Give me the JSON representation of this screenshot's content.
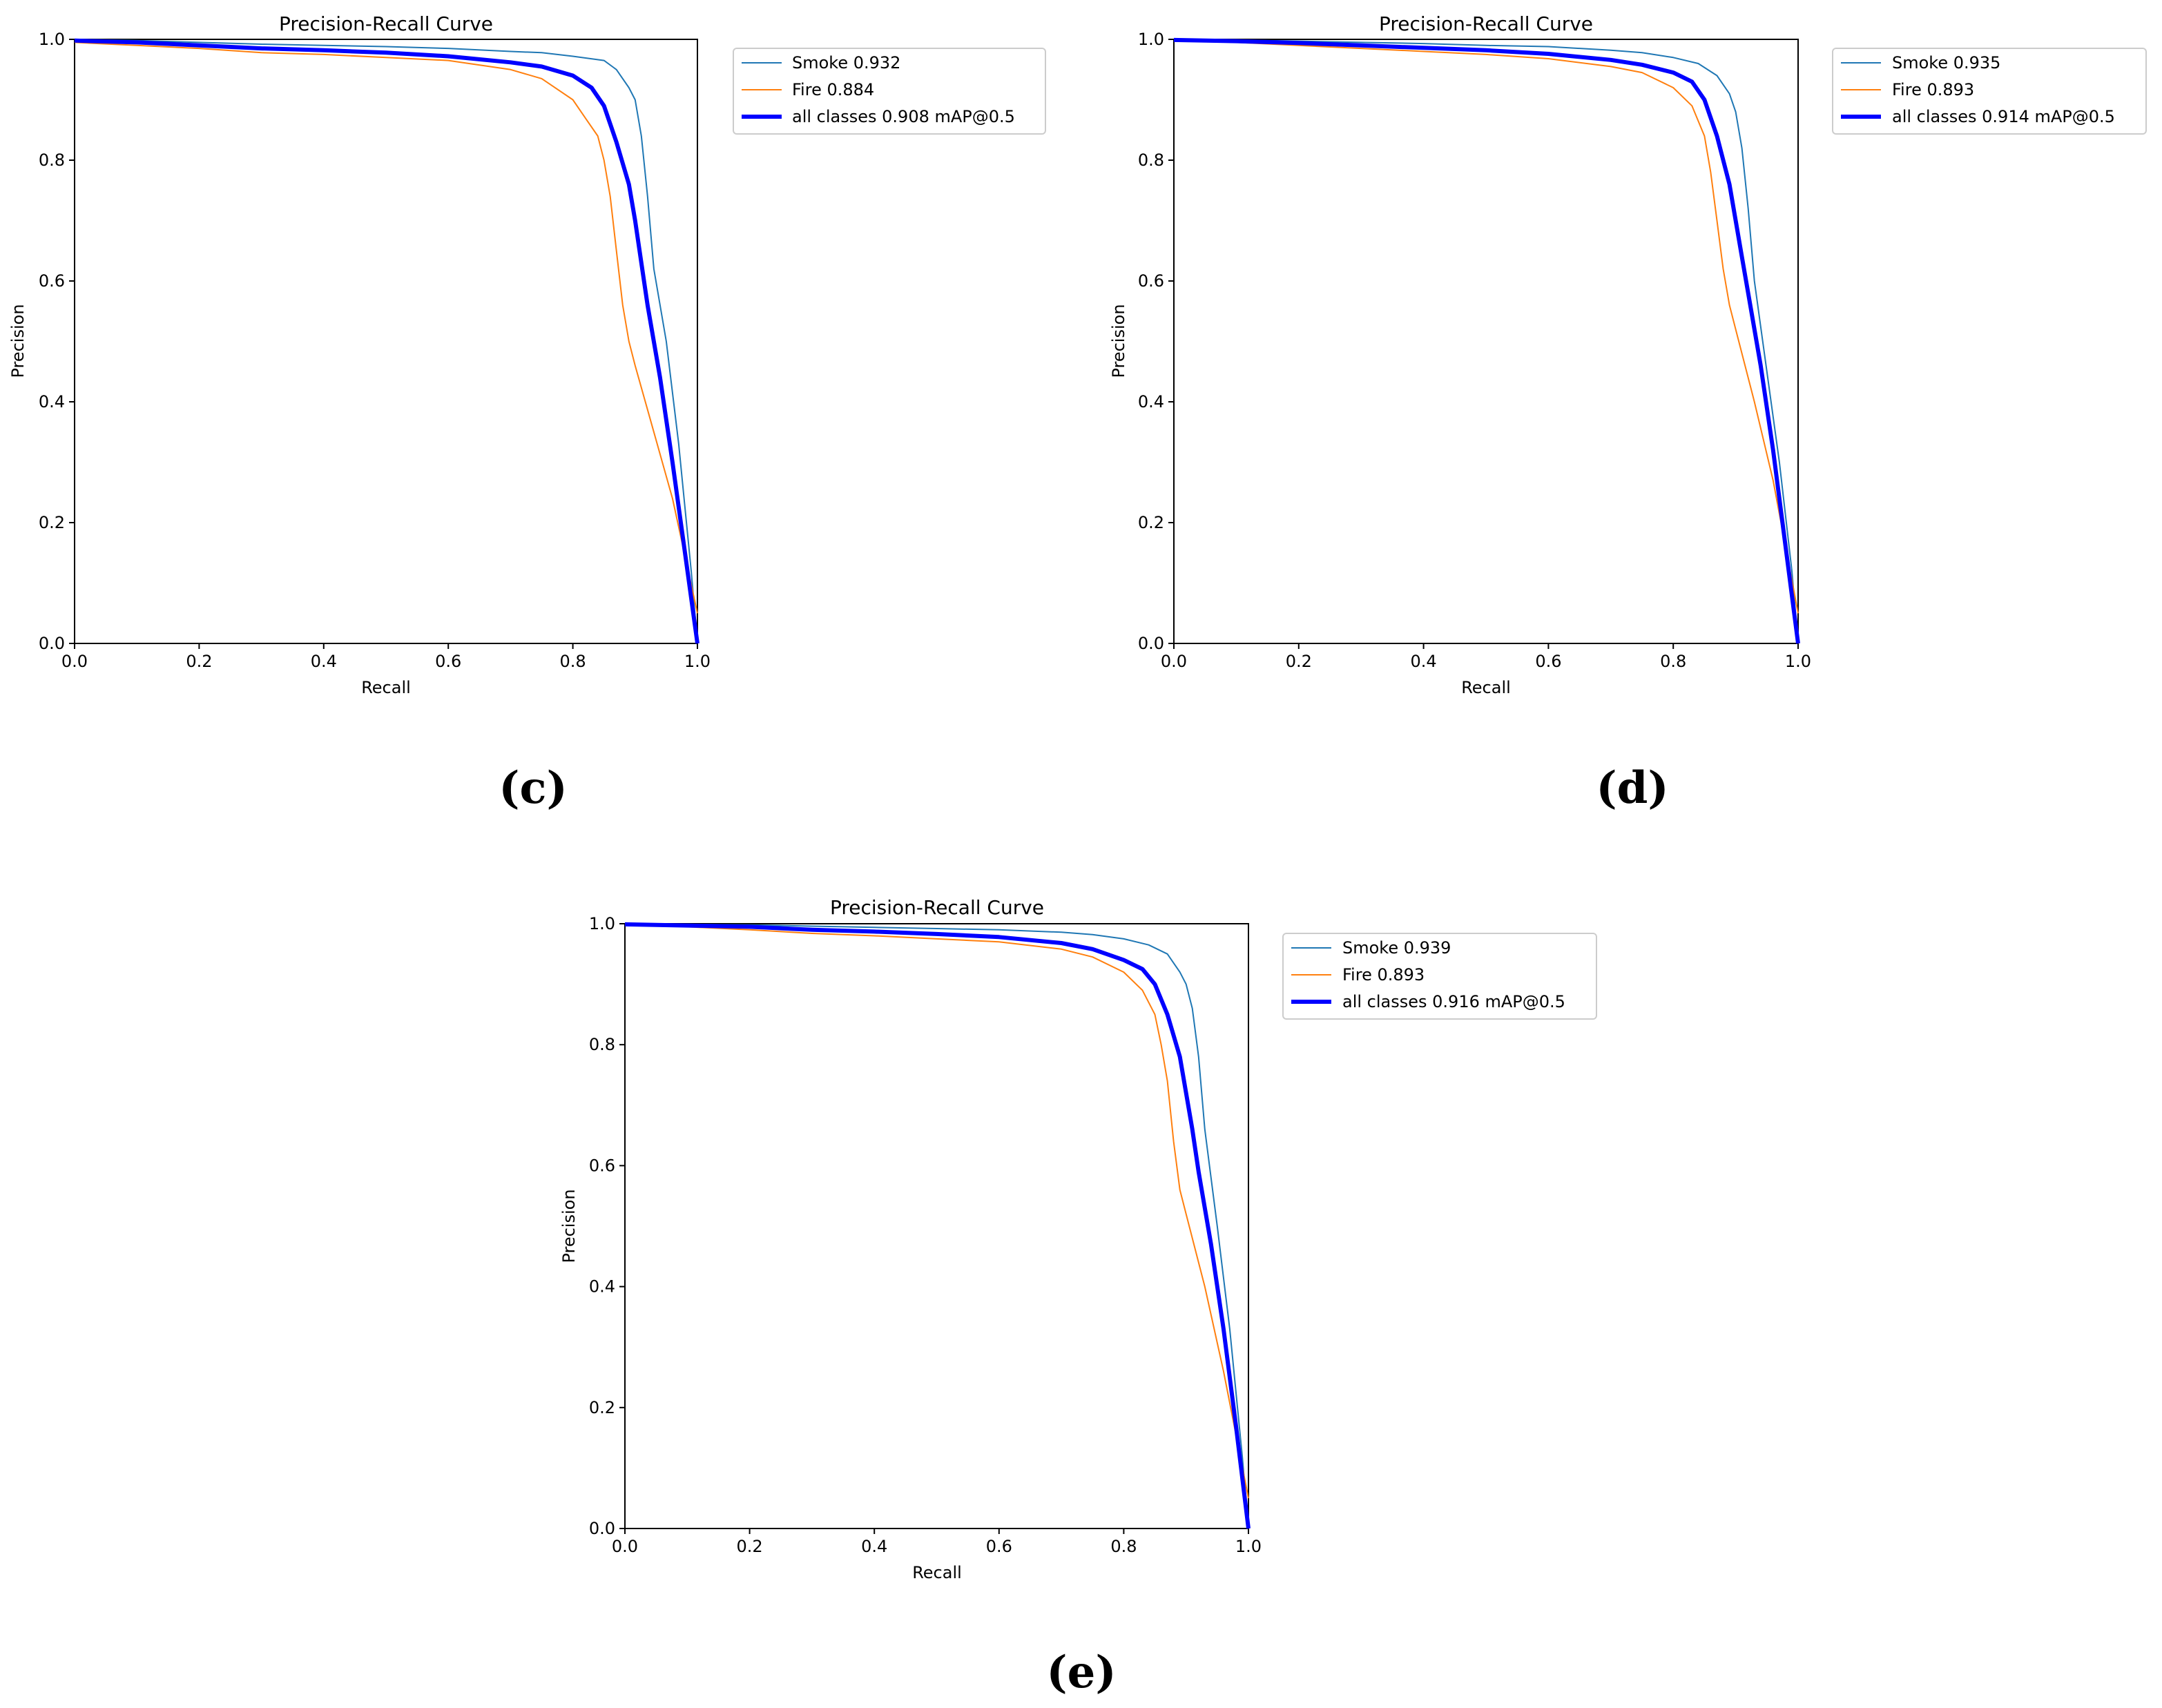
{
  "colors": {
    "smoke": "#1f77b4",
    "fire": "#ff7f0e",
    "all": "#0000ff"
  },
  "chart_data": [
    {
      "panel_label": "(c)",
      "type": "line",
      "title": "Precision-Recall Curve",
      "xlabel": "Recall",
      "ylabel": "Precision",
      "xlim": [
        0,
        1
      ],
      "ylim": [
        0,
        1
      ],
      "xticks": [
        "0.0",
        "0.2",
        "0.4",
        "0.6",
        "0.8",
        "1.0"
      ],
      "yticks": [
        "0.0",
        "0.2",
        "0.4",
        "0.6",
        "0.8",
        "1.0"
      ],
      "grid": false,
      "legend_position": "outside-right",
      "series": [
        {
          "name": "Smoke 0.932",
          "color": "#1f77b4",
          "points": [
            [
              0,
              1.0
            ],
            [
              0.1,
              0.998
            ],
            [
              0.2,
              0.995
            ],
            [
              0.3,
              0.992
            ],
            [
              0.4,
              0.99
            ],
            [
              0.5,
              0.988
            ],
            [
              0.6,
              0.985
            ],
            [
              0.7,
              0.98
            ],
            [
              0.75,
              0.978
            ],
            [
              0.8,
              0.972
            ],
            [
              0.85,
              0.965
            ],
            [
              0.87,
              0.95
            ],
            [
              0.89,
              0.92
            ],
            [
              0.9,
              0.9
            ],
            [
              0.91,
              0.84
            ],
            [
              0.92,
              0.74
            ],
            [
              0.93,
              0.62
            ],
            [
              0.95,
              0.5
            ],
            [
              0.97,
              0.33
            ],
            [
              0.99,
              0.12
            ],
            [
              1.0,
              0.0
            ]
          ]
        },
        {
          "name": "Fire 0.884",
          "color": "#ff7f0e",
          "points": [
            [
              0,
              0.995
            ],
            [
              0.1,
              0.99
            ],
            [
              0.2,
              0.985
            ],
            [
              0.3,
              0.978
            ],
            [
              0.4,
              0.975
            ],
            [
              0.5,
              0.97
            ],
            [
              0.6,
              0.965
            ],
            [
              0.7,
              0.95
            ],
            [
              0.75,
              0.935
            ],
            [
              0.8,
              0.9
            ],
            [
              0.82,
              0.87
            ],
            [
              0.84,
              0.84
            ],
            [
              0.85,
              0.8
            ],
            [
              0.86,
              0.74
            ],
            [
              0.87,
              0.65
            ],
            [
              0.88,
              0.56
            ],
            [
              0.89,
              0.5
            ],
            [
              0.9,
              0.46
            ],
            [
              0.93,
              0.35
            ],
            [
              0.96,
              0.24
            ],
            [
              1.0,
              0.05
            ]
          ]
        },
        {
          "name": "all classes 0.908 mAP@0.5",
          "color": "#0000ff",
          "points": [
            [
              0,
              0.998
            ],
            [
              0.1,
              0.995
            ],
            [
              0.2,
              0.99
            ],
            [
              0.3,
              0.985
            ],
            [
              0.4,
              0.982
            ],
            [
              0.5,
              0.978
            ],
            [
              0.6,
              0.972
            ],
            [
              0.7,
              0.962
            ],
            [
              0.75,
              0.955
            ],
            [
              0.8,
              0.94
            ],
            [
              0.83,
              0.92
            ],
            [
              0.85,
              0.89
            ],
            [
              0.87,
              0.83
            ],
            [
              0.89,
              0.76
            ],
            [
              0.9,
              0.7
            ],
            [
              0.91,
              0.63
            ],
            [
              0.92,
              0.56
            ],
            [
              0.94,
              0.44
            ],
            [
              0.96,
              0.3
            ],
            [
              0.98,
              0.15
            ],
            [
              1.0,
              0.0
            ]
          ]
        }
      ]
    },
    {
      "panel_label": "(d)",
      "type": "line",
      "title": "Precision-Recall Curve",
      "xlabel": "Recall",
      "ylabel": "Precision",
      "xlim": [
        0,
        1
      ],
      "ylim": [
        0,
        1
      ],
      "xticks": [
        "0.0",
        "0.2",
        "0.4",
        "0.6",
        "0.8",
        "1.0"
      ],
      "yticks": [
        "0.0",
        "0.2",
        "0.4",
        "0.6",
        "0.8",
        "1.0"
      ],
      "grid": false,
      "legend_position": "outside-right",
      "series": [
        {
          "name": "Smoke 0.935",
          "color": "#1f77b4",
          "points": [
            [
              0,
              1.0
            ],
            [
              0.1,
              0.999
            ],
            [
              0.2,
              0.997
            ],
            [
              0.3,
              0.995
            ],
            [
              0.4,
              0.993
            ],
            [
              0.5,
              0.99
            ],
            [
              0.6,
              0.988
            ],
            [
              0.7,
              0.982
            ],
            [
              0.75,
              0.978
            ],
            [
              0.8,
              0.97
            ],
            [
              0.84,
              0.96
            ],
            [
              0.87,
              0.94
            ],
            [
              0.89,
              0.91
            ],
            [
              0.9,
              0.88
            ],
            [
              0.91,
              0.82
            ],
            [
              0.92,
              0.72
            ],
            [
              0.93,
              0.6
            ],
            [
              0.95,
              0.45
            ],
            [
              0.97,
              0.3
            ],
            [
              0.99,
              0.12
            ],
            [
              1.0,
              0.0
            ]
          ]
        },
        {
          "name": "Fire 0.893",
          "color": "#ff7f0e",
          "points": [
            [
              0,
              0.998
            ],
            [
              0.1,
              0.995
            ],
            [
              0.2,
              0.99
            ],
            [
              0.3,
              0.985
            ],
            [
              0.4,
              0.98
            ],
            [
              0.5,
              0.975
            ],
            [
              0.6,
              0.968
            ],
            [
              0.7,
              0.955
            ],
            [
              0.75,
              0.945
            ],
            [
              0.8,
              0.92
            ],
            [
              0.83,
              0.89
            ],
            [
              0.85,
              0.84
            ],
            [
              0.86,
              0.78
            ],
            [
              0.87,
              0.7
            ],
            [
              0.88,
              0.62
            ],
            [
              0.89,
              0.56
            ],
            [
              0.9,
              0.52
            ],
            [
              0.93,
              0.4
            ],
            [
              0.96,
              0.27
            ],
            [
              1.0,
              0.05
            ]
          ]
        },
        {
          "name": "all classes 0.914 mAP@0.5",
          "color": "#0000ff",
          "points": [
            [
              0,
              0.999
            ],
            [
              0.1,
              0.997
            ],
            [
              0.2,
              0.994
            ],
            [
              0.3,
              0.99
            ],
            [
              0.4,
              0.986
            ],
            [
              0.5,
              0.982
            ],
            [
              0.6,
              0.976
            ],
            [
              0.7,
              0.966
            ],
            [
              0.75,
              0.958
            ],
            [
              0.8,
              0.945
            ],
            [
              0.83,
              0.93
            ],
            [
              0.85,
              0.9
            ],
            [
              0.87,
              0.84
            ],
            [
              0.89,
              0.76
            ],
            [
              0.9,
              0.7
            ],
            [
              0.91,
              0.64
            ],
            [
              0.92,
              0.58
            ],
            [
              0.94,
              0.46
            ],
            [
              0.96,
              0.32
            ],
            [
              0.98,
              0.16
            ],
            [
              1.0,
              0.0
            ]
          ]
        }
      ]
    },
    {
      "panel_label": "(e)",
      "type": "line",
      "title": "Precision-Recall Curve",
      "xlabel": "Recall",
      "ylabel": "Precision",
      "xlim": [
        0,
        1
      ],
      "ylim": [
        0,
        1
      ],
      "xticks": [
        "0.0",
        "0.2",
        "0.4",
        "0.6",
        "0.8",
        "1.0"
      ],
      "yticks": [
        "0.0",
        "0.2",
        "0.4",
        "0.6",
        "0.8",
        "1.0"
      ],
      "grid": false,
      "legend_position": "outside-right",
      "series": [
        {
          "name": "Smoke 0.939",
          "color": "#1f77b4",
          "points": [
            [
              0,
              1.0
            ],
            [
              0.1,
              0.999
            ],
            [
              0.2,
              0.998
            ],
            [
              0.3,
              0.996
            ],
            [
              0.4,
              0.994
            ],
            [
              0.5,
              0.992
            ],
            [
              0.6,
              0.99
            ],
            [
              0.7,
              0.986
            ],
            [
              0.75,
              0.982
            ],
            [
              0.8,
              0.975
            ],
            [
              0.84,
              0.965
            ],
            [
              0.87,
              0.95
            ],
            [
              0.89,
              0.92
            ],
            [
              0.9,
              0.9
            ],
            [
              0.91,
              0.86
            ],
            [
              0.92,
              0.78
            ],
            [
              0.93,
              0.66
            ],
            [
              0.95,
              0.5
            ],
            [
              0.97,
              0.33
            ],
            [
              0.99,
              0.12
            ],
            [
              1.0,
              0.0
            ]
          ]
        },
        {
          "name": "Fire 0.893",
          "color": "#ff7f0e",
          "points": [
            [
              0,
              0.998
            ],
            [
              0.1,
              0.995
            ],
            [
              0.2,
              0.99
            ],
            [
              0.3,
              0.984
            ],
            [
              0.4,
              0.98
            ],
            [
              0.5,
              0.975
            ],
            [
              0.6,
              0.97
            ],
            [
              0.7,
              0.958
            ],
            [
              0.75,
              0.945
            ],
            [
              0.8,
              0.92
            ],
            [
              0.83,
              0.89
            ],
            [
              0.85,
              0.85
            ],
            [
              0.86,
              0.8
            ],
            [
              0.87,
              0.74
            ],
            [
              0.88,
              0.64
            ],
            [
              0.89,
              0.56
            ],
            [
              0.9,
              0.52
            ],
            [
              0.93,
              0.4
            ],
            [
              0.96,
              0.26
            ],
            [
              1.0,
              0.05
            ]
          ]
        },
        {
          "name": "all classes 0.916 mAP@0.5",
          "color": "#0000ff",
          "points": [
            [
              0,
              0.999
            ],
            [
              0.1,
              0.997
            ],
            [
              0.2,
              0.995
            ],
            [
              0.3,
              0.99
            ],
            [
              0.4,
              0.987
            ],
            [
              0.5,
              0.983
            ],
            [
              0.6,
              0.978
            ],
            [
              0.7,
              0.968
            ],
            [
              0.75,
              0.958
            ],
            [
              0.8,
              0.94
            ],
            [
              0.83,
              0.925
            ],
            [
              0.85,
              0.9
            ],
            [
              0.87,
              0.85
            ],
            [
              0.89,
              0.78
            ],
            [
              0.9,
              0.72
            ],
            [
              0.91,
              0.66
            ],
            [
              0.92,
              0.59
            ],
            [
              0.94,
              0.47
            ],
            [
              0.96,
              0.33
            ],
            [
              0.98,
              0.17
            ],
            [
              1.0,
              0.0
            ]
          ]
        }
      ]
    }
  ]
}
